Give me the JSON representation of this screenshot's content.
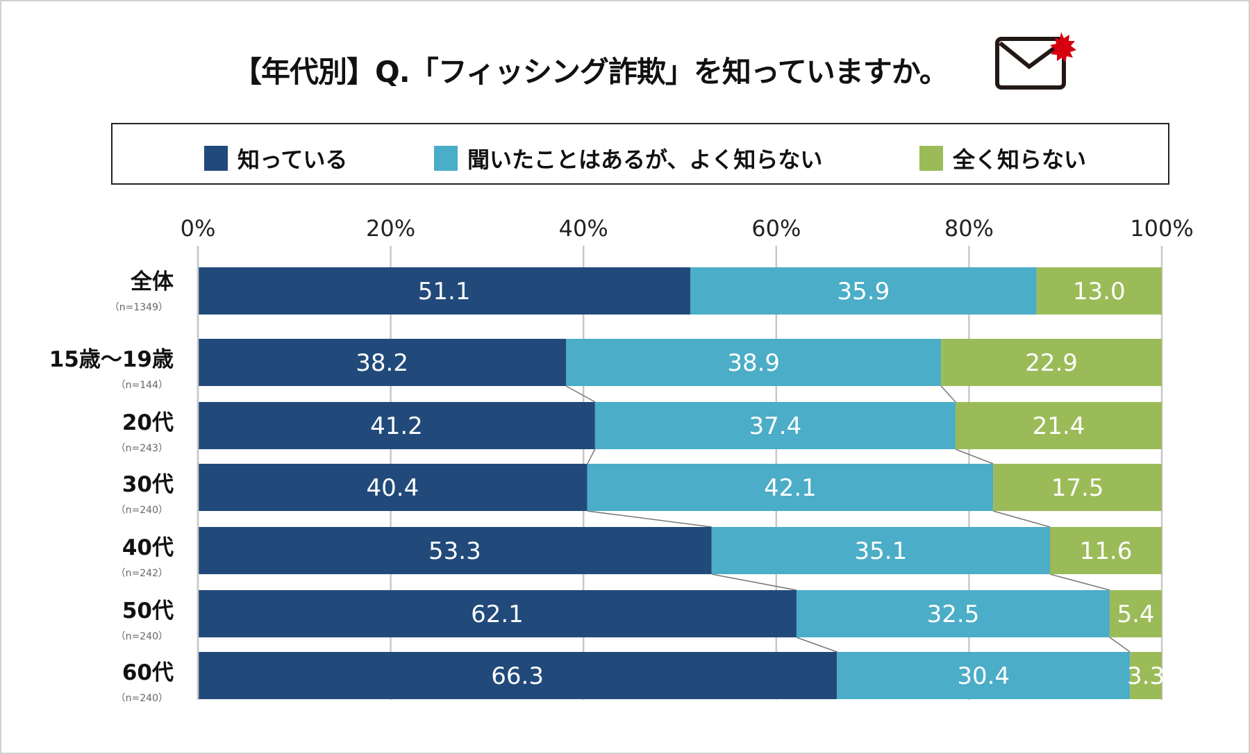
{
  "title": "【年代別】Q.「フィッシング詐欺」を知っていますか。",
  "icon": "envelope-with-virus-icon",
  "chart_data": {
    "type": "bar",
    "orientation": "horizontal-stacked-100",
    "categories": [
      "全体",
      "15歳～19歳",
      "20代",
      "30代",
      "40代",
      "50代",
      "60代"
    ],
    "sample_sizes": [
      "（n=1349）",
      "（n=144）",
      "（n=243）",
      "（n=240）",
      "（n=242）",
      "（n=240）",
      "（n=240）"
    ],
    "series": [
      {
        "name": "知っている",
        "color": "#214a7b",
        "values": [
          51.1,
          38.2,
          41.2,
          40.4,
          53.3,
          62.1,
          66.3
        ]
      },
      {
        "name": "聞いたことはあるが、よく知らない",
        "color": "#4badc7",
        "values": [
          35.9,
          38.9,
          37.4,
          42.1,
          35.1,
          32.5,
          30.4
        ]
      },
      {
        "name": "全く知らない",
        "color": "#9bbb59",
        "values": [
          13.0,
          22.9,
          21.4,
          17.5,
          11.6,
          5.4,
          3.3
        ]
      }
    ],
    "value_labels": [
      [
        "51.1",
        "35.9",
        "13.0"
      ],
      [
        "38.2",
        "38.9",
        "22.9"
      ],
      [
        "41.2",
        "37.4",
        "21.4"
      ],
      [
        "40.4",
        "42.1",
        "17.5"
      ],
      [
        "53.3",
        "35.1",
        "11.6"
      ],
      [
        "62.1",
        "32.5",
        "5.4"
      ],
      [
        "66.3",
        "30.4",
        "3.3"
      ]
    ],
    "xticks": [
      "0%",
      "20%",
      "40%",
      "60%",
      "80%",
      "100%"
    ],
    "xlim": [
      0,
      100
    ],
    "grid": true,
    "legend": "top"
  }
}
